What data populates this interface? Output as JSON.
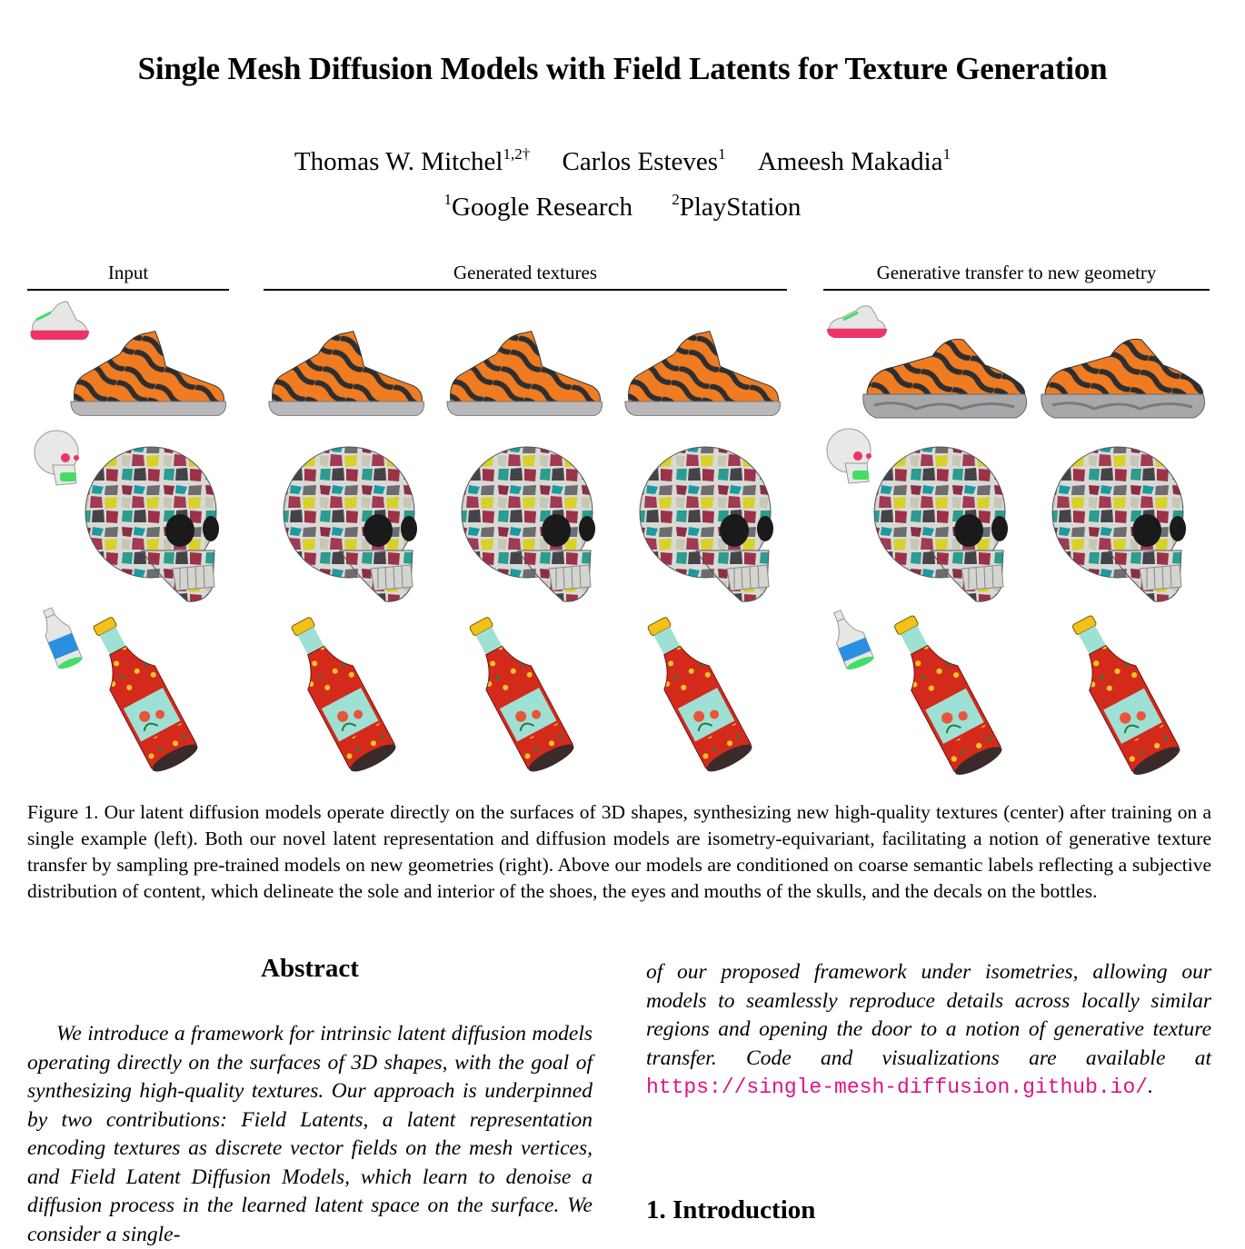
{
  "paper": {
    "title": "Single Mesh Diffusion Models with Field Latents for Texture Generation",
    "authors": [
      {
        "name": "Thomas W. Mitchel",
        "sup": "1,2†"
      },
      {
        "name": "Carlos Esteves",
        "sup": "1"
      },
      {
        "name": "Ameesh Makadia",
        "sup": "1"
      }
    ],
    "affiliations": [
      {
        "sup": "1",
        "name": "Google Research"
      },
      {
        "sup": "2",
        "name": "PlayStation"
      }
    ]
  },
  "figure": {
    "column_headers": [
      "Input",
      "Generated textures",
      "Generative transfer to new geometry"
    ],
    "colors": {
      "shoe_orange": "#e8731a",
      "shoe_dark": "#2e2e30",
      "sole_gray": "#b9b9bb",
      "label_pink": "#ee3366",
      "label_green": "#44dd66",
      "label_blue": "#2a8fe0",
      "bottle_red": "#d42a1c",
      "bottle_cyan": "#9fe0d4",
      "bottle_gold": "#f2c21a"
    },
    "caption": "Figure 1. Our latent diffusion models operate directly on the surfaces of 3D shapes, synthesizing new high-quality textures (center) after training on a single example (left). Both our novel latent representation and diffusion models are isometry-equivariant, facilitating a notion of generative texture transfer by sampling pre-trained models on new geometries (right).  Above our models are conditioned on coarse semantic labels reflecting a subjective distribution of content, which delineate the sole and interior of the shoes, the eyes and mouths of the skulls, and the decals on the bottles."
  },
  "abstract": {
    "heading": "Abstract",
    "text": "We introduce a framework for intrinsic latent diffusion models operating directly on the surfaces of 3D shapes, with the goal of synthesizing high-quality textures. Our approach is underpinned by two contributions: Field Latents, a latent representation encoding textures as discrete vector fields on the mesh vertices, and Field Latent Diffusion Models, which learn to denoise a diffusion process in the learned latent space on the surface. We consider a single-",
    "continuation": "of our proposed framework under isometries, allowing our models to seamlessly reproduce details across locally similar regions and opening the door to a notion of generative texture transfer. Code and visualizations are available at ",
    "url": "https://single-mesh-diffusion.github.io/",
    "after_url": "."
  },
  "intro": {
    "heading": "1. Introduction"
  }
}
